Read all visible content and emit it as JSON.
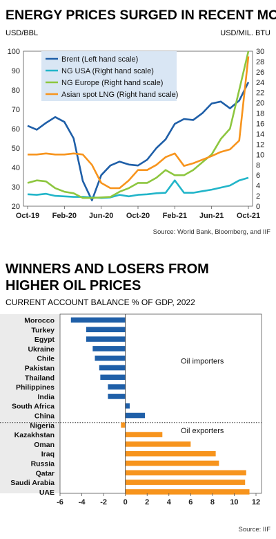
{
  "chart_data": [
    {
      "type": "line",
      "title": "ENERGY PRICES SURGED IN RECENT MONTHS",
      "left_axis_unit": "USD/BBL",
      "right_axis_unit": "USD/MIL. BTU",
      "x_ticks": [
        "Oct-19",
        "Feb-20",
        "Jun-20",
        "Oct-20",
        "Feb-21",
        "Jun-21",
        "Oct-21"
      ],
      "x_months": [
        "Oct-19",
        "Nov-19",
        "Dec-19",
        "Jan-20",
        "Feb-20",
        "Mar-20",
        "Apr-20",
        "May-20",
        "Jun-20",
        "Jul-20",
        "Aug-20",
        "Sep-20",
        "Oct-20",
        "Nov-20",
        "Dec-20",
        "Jan-21",
        "Feb-21",
        "Mar-21",
        "Apr-21",
        "May-21",
        "Jun-21",
        "Jul-21",
        "Aug-21",
        "Sep-21",
        "Oct-21"
      ],
      "ylim_left": [
        20,
        100
      ],
      "yticks_left": [
        "20",
        "30",
        "40",
        "50",
        "60",
        "70",
        "80",
        "90",
        "100"
      ],
      "ylim_right": [
        0,
        30
      ],
      "yticks_right": [
        "0",
        "2",
        "4",
        "6",
        "8",
        "10",
        "12",
        "14",
        "16",
        "18",
        "20",
        "22",
        "24",
        "26",
        "28",
        "30"
      ],
      "legend_position": "top-left",
      "series": [
        {
          "name": "Brent (Left hand scale)",
          "axis": "left",
          "color": "#1f5fa8",
          "values": [
            61.5,
            59.5,
            63,
            66,
            63.5,
            55,
            33,
            23,
            36,
            41,
            43,
            41.5,
            41,
            44,
            50,
            54.5,
            62.5,
            65,
            64.5,
            68,
            73,
            74,
            70.5,
            74.5,
            84
          ]
        },
        {
          "name": "NG USA (Right hand scale)",
          "axis": "right",
          "color": "#22b5c9",
          "values": [
            2.3,
            2.2,
            2.4,
            2.0,
            1.9,
            1.8,
            1.8,
            1.7,
            1.6,
            1.7,
            2.2,
            1.9,
            2.2,
            2.3,
            2.5,
            2.6,
            5.0,
            2.6,
            2.6,
            2.9,
            3.2,
            3.6,
            4.0,
            5.0,
            5.5
          ]
        },
        {
          "name": "NG Europe (Right hand scale)",
          "axis": "right",
          "color": "#8dc63f",
          "values": [
            4.5,
            5.0,
            4.8,
            3.5,
            2.8,
            2.5,
            1.6,
            1.6,
            1.7,
            1.8,
            2.8,
            3.5,
            4.5,
            4.5,
            5.5,
            7.0,
            6.0,
            6.0,
            7.0,
            8.5,
            10.0,
            13.0,
            15.0,
            22.5,
            30.0
          ]
        },
        {
          "name": "Asian spot LNG (Right hand scale)",
          "axis": "right",
          "color": "#f7941d",
          "values": [
            10,
            10,
            10.2,
            10,
            10,
            10.2,
            10,
            8,
            4.5,
            3.5,
            3.5,
            5,
            7,
            7,
            8,
            9.5,
            10.2,
            7.8,
            8.3,
            9.0,
            9.7,
            10.5,
            11.0,
            12.7,
            29.0
          ]
        }
      ],
      "source": "Source: World Bank, Bloomberg, and IIF"
    },
    {
      "type": "bar",
      "orientation": "horizontal",
      "title": "WINNERS AND LOSERS FROM HIGHER OIL PRICES",
      "subtitle": "CURRENT ACCOUNT BALANCE % OF GDP, 2022",
      "xlim": [
        -6,
        12
      ],
      "x_ticks": [
        "-6",
        "-4",
        "-2",
        "0",
        "2",
        "4",
        "6",
        "8",
        "10",
        "12"
      ],
      "groups": [
        {
          "name": "Oil importers",
          "color": "#1f5fa8",
          "categories": [
            "Morocco",
            "Turkey",
            "Egypt",
            "Ukraine",
            "Chile",
            "Pakistan",
            "Thailand",
            "Philippines",
            "India",
            "South Africa",
            "China"
          ],
          "values": [
            -5.0,
            -3.6,
            -3.6,
            -3.0,
            -2.8,
            -2.4,
            -2.3,
            -1.6,
            -1.6,
            0.4,
            1.8
          ]
        },
        {
          "name": "Oil exporters",
          "color": "#f7941d",
          "categories": [
            "Nigeria",
            "Kazakhstan",
            "Oman",
            "Iraq",
            "Russia",
            "Qatar",
            "Saudi Arabia",
            "UAE"
          ],
          "values": [
            -0.4,
            3.4,
            6.0,
            8.3,
            8.6,
            11.1,
            11.0,
            11.4
          ]
        }
      ],
      "source": "Source: IIF"
    }
  ]
}
